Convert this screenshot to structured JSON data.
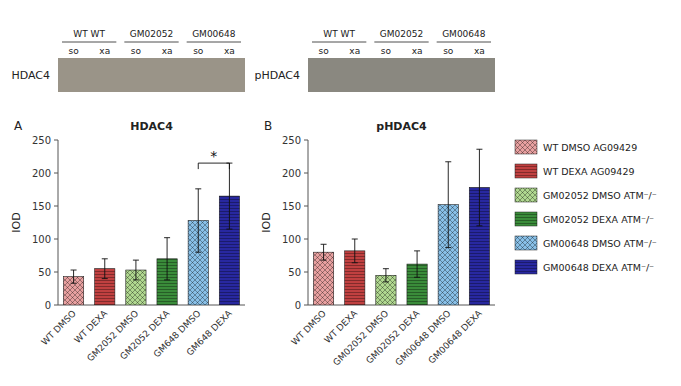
{
  "chart_data": [
    {
      "type": "bar",
      "title": "HDAC4",
      "panel_label": "A",
      "categories": [
        "WT DMSO",
        "WT DEXA",
        "GM2052 DMSO",
        "GM2052 DEXA",
        "GM648 DMSO",
        "GM648 DEXA"
      ],
      "values": [
        43,
        55,
        53,
        70,
        128,
        165
      ],
      "errors": [
        10,
        15,
        15,
        32,
        48,
        50
      ],
      "colors": [
        "#e8a0a0",
        "#c04040",
        "#b0d890",
        "#3a8c3a",
        "#88c0e8",
        "#2828a0"
      ],
      "y_label": "IOD",
      "ylim": [
        0,
        250
      ],
      "yticks": [
        0,
        50,
        100,
        150,
        200,
        250
      ],
      "annotations": [
        {
          "text": "*",
          "from": "GM648 DMSO",
          "to": "GM648 DEXA",
          "y": 215
        }
      ],
      "blot": {
        "label": "HDAC4",
        "background": "#9a9488",
        "groups": [
          "WT  WT",
          "GM02052",
          "GM00648"
        ],
        "lanes": [
          "so",
          "xa",
          "so",
          "xa",
          "so",
          "xa"
        ]
      }
    },
    {
      "type": "bar",
      "title": "pHDAC4",
      "panel_label": "B",
      "categories": [
        "WT DMSO",
        "WT DEXA",
        "GM02052 DMSO",
        "GM02052 DEXA",
        "GM00648 DMSO",
        "GM00648 DEXA"
      ],
      "values": [
        80,
        82,
        45,
        62,
        152,
        178
      ],
      "errors": [
        12,
        18,
        10,
        20,
        65,
        58
      ],
      "colors": [
        "#e8a0a0",
        "#c04040",
        "#b0d890",
        "#3a8c3a",
        "#88c0e8",
        "#2828a0"
      ],
      "y_label": "IOD",
      "ylim": [
        0,
        250
      ],
      "yticks": [
        0,
        50,
        100,
        150,
        200,
        250
      ],
      "blot": {
        "label": "pHDAC4",
        "background": "#8a8880",
        "groups": [
          "WT  WT",
          "GM02052",
          "GM00648"
        ],
        "lanes": [
          "so",
          "xa",
          "so",
          "xa",
          "so",
          "xa"
        ]
      }
    }
  ],
  "legend_entries": [
    {
      "name": "WT DMSO AG09429",
      "color": "#e8a0a0"
    },
    {
      "name": "WT DEXA AG09429",
      "color": "#c04040"
    },
    {
      "name": "GM02052 DMSO ATM⁻/⁻",
      "color": "#b0d890"
    },
    {
      "name": "GM02052 DEXA ATM⁻/⁻",
      "color": "#3a8c3a"
    },
    {
      "name": "GM00648 DMSO ATM⁻/⁻",
      "color": "#88c0e8"
    },
    {
      "name": "GM00648 DEXA ATM⁻/⁻",
      "color": "#2828a0"
    }
  ]
}
